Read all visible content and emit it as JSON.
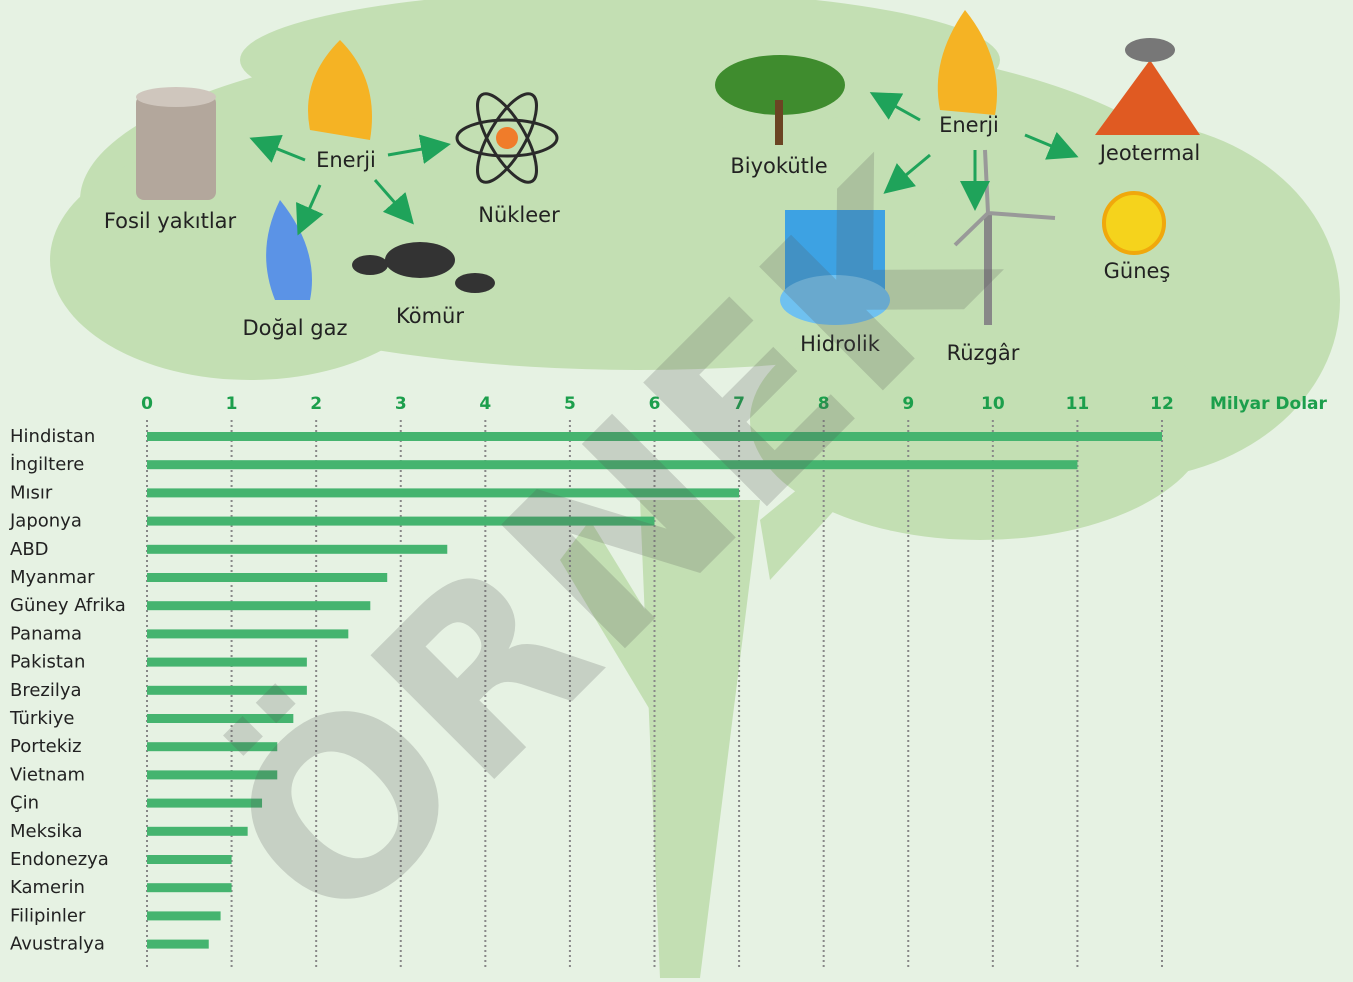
{
  "chart_data": {
    "type": "bar",
    "orientation": "horizontal",
    "xlabel": "Milyar Dolar",
    "color": "#45b46f",
    "categories": [
      "Hindistan",
      "İngiltere",
      "Mısır",
      "Japonya",
      "ABD",
      "Myanmar",
      "Güney Afrika",
      "Panama",
      "Pakistan",
      "Brezilya",
      "Türkiye",
      "Portekiz",
      "Vietnam",
      "Çin",
      "Meksika",
      "Endonezya",
      "Kamerin",
      "Filipinler",
      "Avustralya"
    ],
    "values": [
      12,
      11,
      7,
      6,
      3.55,
      2.84,
      2.64,
      2.38,
      1.89,
      1.89,
      1.73,
      1.54,
      1.54,
      1.36,
      1.19,
      1,
      1,
      0.87,
      0.73
    ],
    "xlim": [
      0,
      12
    ],
    "xticks": [
      0,
      1,
      2,
      3,
      4,
      5,
      6,
      7,
      8,
      9,
      10,
      11,
      12
    ],
    "grid": true
  },
  "diagram": {
    "nodes": [
      {
        "label": "Enerji"
      },
      {
        "label": "Fosil yakıtlar"
      },
      {
        "label": "Nükleer"
      },
      {
        "label": "Doğal gaz"
      },
      {
        "label": "Kömür"
      },
      {
        "label": "Enerji"
      },
      {
        "label": "Biyokütle"
      },
      {
        "label": "Jeotermal"
      },
      {
        "label": "Hidrolik"
      },
      {
        "label": "Rüzgâr"
      },
      {
        "label": "Güneş"
      }
    ]
  },
  "watermark": "ÖRNEK"
}
